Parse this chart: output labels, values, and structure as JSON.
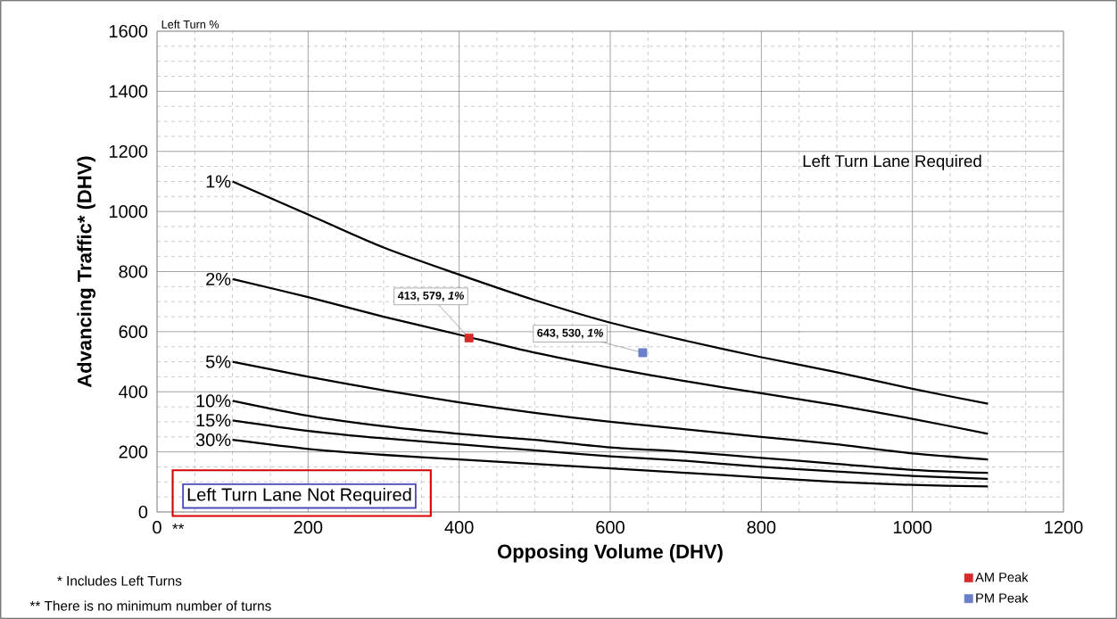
{
  "chart_data": {
    "type": "line",
    "xlabel": "Opposing Volume (DHV)",
    "ylabel": "Advancing Traffic* (DHV)",
    "xlim": [
      0,
      1200
    ],
    "ylim": [
      0,
      1600
    ],
    "xticks": [
      0,
      200,
      400,
      600,
      800,
      1000,
      1200
    ],
    "yticks": [
      0,
      200,
      400,
      600,
      800,
      1000,
      1200,
      1400,
      1600
    ],
    "grid": true,
    "legend": "bottom right",
    "x": [
      100,
      200,
      300,
      400,
      500,
      600,
      700,
      800,
      900,
      1000,
      1100
    ],
    "series": [
      {
        "name": "1%",
        "color": "#000000",
        "values": [
          1100,
          990,
          880,
          790,
          705,
          630,
          570,
          515,
          465,
          410,
          360
        ]
      },
      {
        "name": "2%",
        "color": "#000000",
        "values": [
          775,
          715,
          650,
          590,
          530,
          480,
          435,
          395,
          355,
          310,
          260
        ]
      },
      {
        "name": "5%",
        "color": "#000000",
        "values": [
          500,
          450,
          405,
          365,
          330,
          300,
          275,
          250,
          225,
          195,
          175
        ]
      },
      {
        "name": "10%",
        "color": "#000000",
        "values": [
          370,
          320,
          285,
          260,
          240,
          215,
          200,
          180,
          160,
          140,
          130
        ]
      },
      {
        "name": "15%",
        "color": "#000000",
        "values": [
          305,
          270,
          245,
          225,
          205,
          185,
          170,
          150,
          135,
          120,
          110
        ]
      },
      {
        "name": "30%",
        "color": "#000000",
        "values": [
          240,
          210,
          190,
          175,
          160,
          145,
          130,
          115,
          100,
          90,
          85
        ]
      },
      {
        "name": "AM Peak",
        "type": "scatter",
        "marker": "square",
        "color": "#d62a2a",
        "x": [
          413
        ],
        "values": [
          579
        ]
      },
      {
        "name": "PM Peak",
        "type": "scatter",
        "marker": "square",
        "color": "#6a7fc7",
        "x": [
          643
        ],
        "values": [
          530
        ]
      }
    ],
    "annotations": [
      "Left Turn %",
      "Left Turn Lane Required",
      "Left Turn Lane Not Required",
      "* Includes Left Turns",
      "** There is no minimum number of turns",
      "**",
      {
        "text": "413, 579, *1%*",
        "x": 413,
        "y": 579
      },
      {
        "text": "643, 530, *1%*",
        "x": 643,
        "y": 530
      }
    ]
  }
}
